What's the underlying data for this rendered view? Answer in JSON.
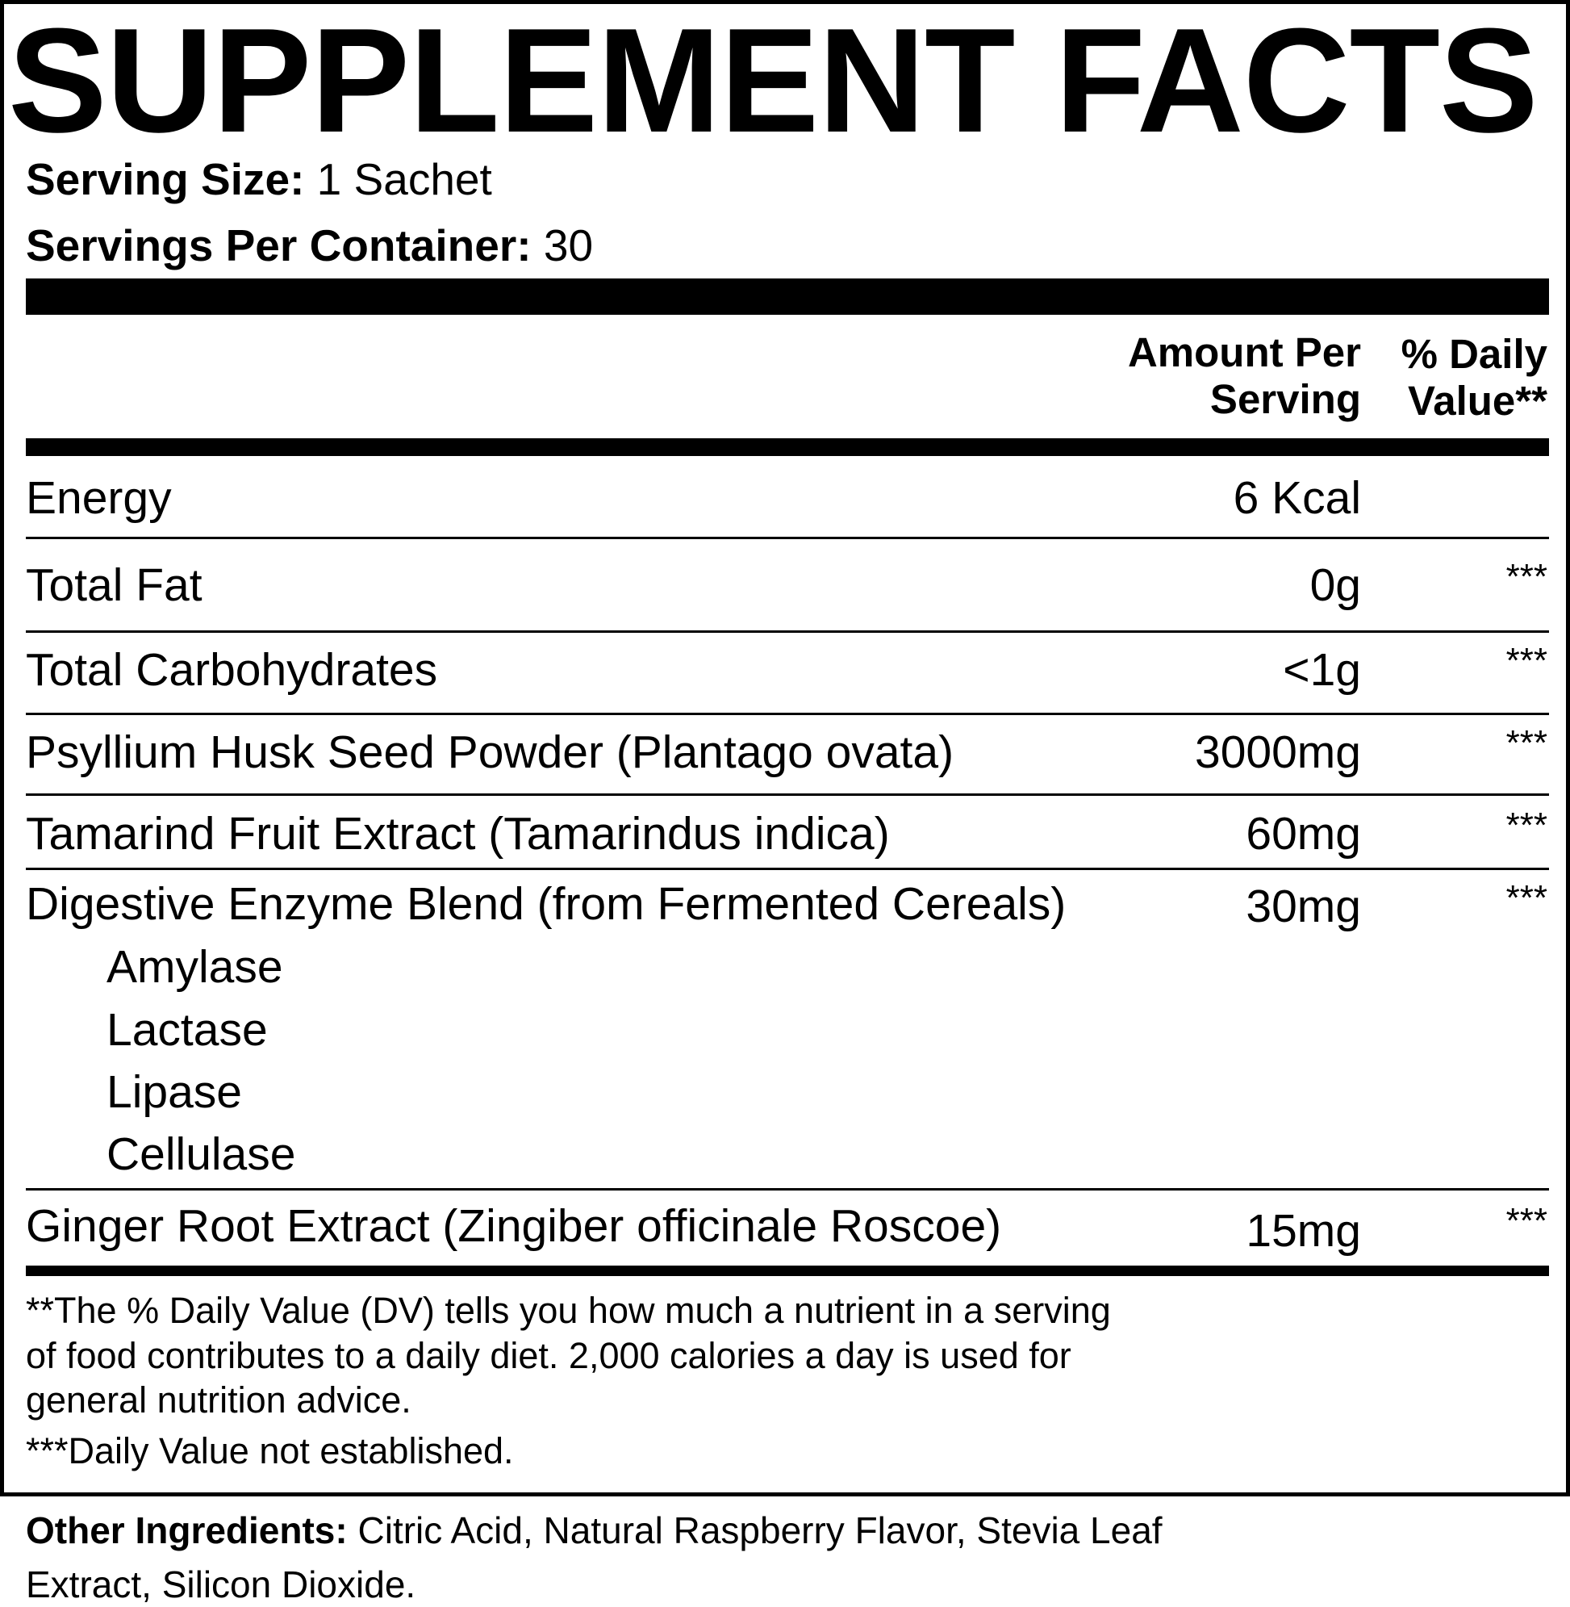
{
  "title": "SUPPLEMENT FACTS",
  "serving_size": {
    "label": "Serving Size:",
    "value": "1 Sachet"
  },
  "servings_per_container": {
    "label": "Servings Per Container:",
    "value": "30"
  },
  "headers": {
    "amount_line1": "Amount Per",
    "amount_line2": "Serving",
    "dv_line1": "% Daily",
    "dv_line2": "Value**"
  },
  "rows": [
    {
      "name": "Energy",
      "amount": "6 Kcal",
      "dv": ""
    },
    {
      "name": "Total Fat",
      "amount": "0g",
      "dv": "***"
    },
    {
      "name": "Total Carbohydrates",
      "amount": "<1g",
      "dv": "***"
    },
    {
      "name": "Psyllium Husk Seed Powder (Plantago ovata)",
      "amount": "3000mg",
      "dv": "***"
    },
    {
      "name": "Tamarind Fruit Extract (Tamarindus indica)",
      "amount": "60mg",
      "dv": "***"
    },
    {
      "name": "Digestive Enzyme Blend (from Fermented Cereals)",
      "amount": "30mg",
      "dv": "***",
      "sub_items": [
        "Amylase",
        "Lactase",
        "Lipase",
        "Cellulase"
      ]
    },
    {
      "name": "Ginger Root Extract (Zingiber officinale Roscoe)",
      "amount": "15mg",
      "dv": "***"
    }
  ],
  "footnotes": [
    "**The % Daily Value (DV) tells you how much a nutrient in a serving",
    "of food contributes to a daily diet. 2,000 calories a day is used for",
    "general nutrition advice.",
    "***Daily Value not established."
  ],
  "other_ingredients": {
    "label": "Other Ingredients:",
    "line1": "Citric Acid, Natural Raspberry Flavor, Stevia Leaf",
    "line2": "Extract, Silicon Dioxide."
  }
}
